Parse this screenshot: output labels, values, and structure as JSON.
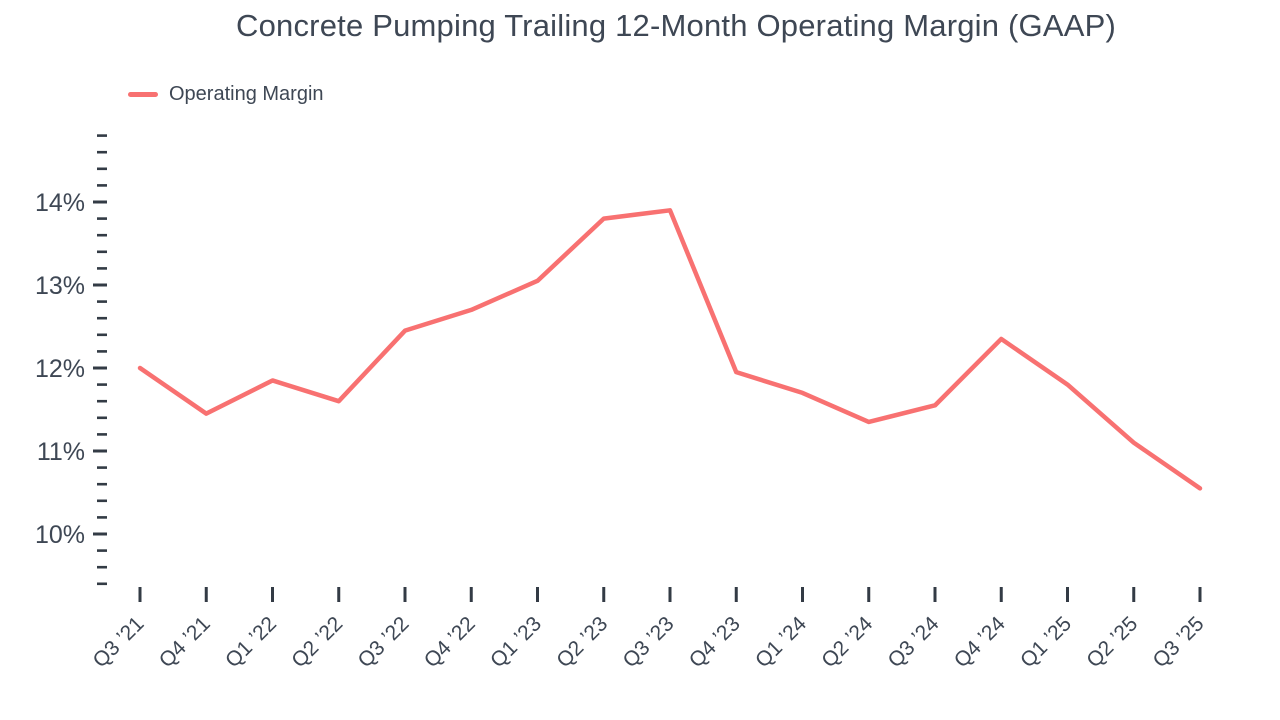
{
  "title": "Concrete Pumping Trailing 12-Month Operating Margin (GAAP)",
  "legend": {
    "label": "Operating Margin"
  },
  "colors": {
    "line": "#f87171",
    "text": "#3e4754",
    "tick": "#333b45"
  },
  "chart_data": {
    "type": "line",
    "title": "Concrete Pumping Trailing 12-Month Operating Margin (GAAP)",
    "categories": [
      "Q3 ’21",
      "Q4 ’21",
      "Q1 ’22",
      "Q2 ’22",
      "Q3 ’22",
      "Q4 ’22",
      "Q1 ’23",
      "Q2 ’23",
      "Q3 ’23",
      "Q4 ’23",
      "Q1 ’24",
      "Q2 ’24",
      "Q3 ’24",
      "Q4 ’24",
      "Q1 ’25",
      "Q2 ’25",
      "Q3 ’25"
    ],
    "series": [
      {
        "name": "Operating Margin",
        "values": [
          12.0,
          11.45,
          11.85,
          11.6,
          12.45,
          12.7,
          13.05,
          13.8,
          13.9,
          11.95,
          11.7,
          11.35,
          11.55,
          12.35,
          11.8,
          11.1,
          10.55
        ]
      }
    ],
    "unit": "%",
    "xlabel": "",
    "ylabel": "",
    "ylim": [
      9.3,
      14.9
    ],
    "y_major_ticks": [
      10,
      11,
      12,
      13,
      14
    ],
    "y_tick_labels": [
      "10%",
      "11%",
      "12%",
      "13%",
      "14%"
    ],
    "y_minor_tick_range": [
      9.4,
      14.8
    ],
    "y_minor_step": 0.2,
    "grid": false,
    "legend_position": "top-left"
  }
}
